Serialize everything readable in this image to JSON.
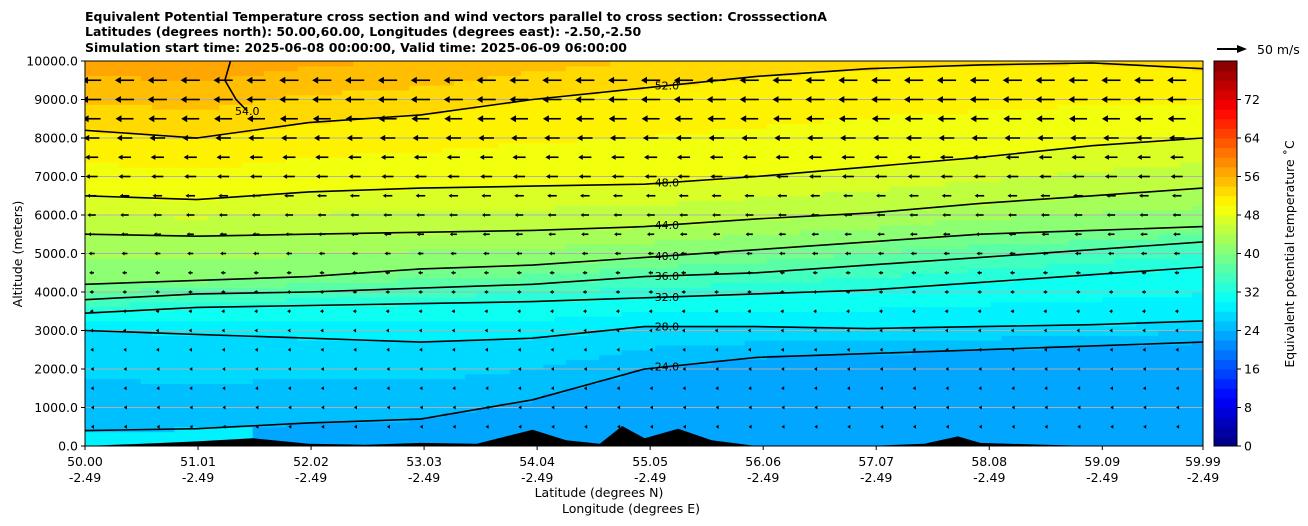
{
  "title_lines": [
    "Equivalent Potential Temperature cross section and wind vectors parallel to cross section: CrosssectionA",
    "Latitudes (degrees north): 50.00,60.00, Longitudes (degrees east): -2.50,-2.50",
    "Simulation start time: 2025-06-08 00:00:00, Valid time: 2025-06-09 06:00:00"
  ],
  "chart_data": {
    "type": "heatmap",
    "subtype": "filled contour cross-section with wind vectors",
    "xlabel": "Latitude (degrees N)",
    "xlabel2": "Longitude (degrees E)",
    "ylabel": "Altitude (meters)",
    "xlim": [
      50.0,
      59.99
    ],
    "ylim": [
      0,
      10000
    ],
    "x_ticks": [
      {
        "lat": 50.0,
        "lat_label": "50.00",
        "lon_label": "-2.49"
      },
      {
        "lat": 51.01,
        "lat_label": "51.01",
        "lon_label": "-2.49"
      },
      {
        "lat": 52.02,
        "lat_label": "52.02",
        "lon_label": "-2.49"
      },
      {
        "lat": 53.03,
        "lat_label": "53.03",
        "lon_label": "-2.49"
      },
      {
        "lat": 54.04,
        "lat_label": "54.04",
        "lon_label": "-2.49"
      },
      {
        "lat": 55.05,
        "lat_label": "55.05",
        "lon_label": "-2.49"
      },
      {
        "lat": 56.06,
        "lat_label": "56.06",
        "lon_label": "-2.49"
      },
      {
        "lat": 57.07,
        "lat_label": "57.07",
        "lon_label": "-2.49"
      },
      {
        "lat": 58.08,
        "lat_label": "58.08",
        "lon_label": "-2.49"
      },
      {
        "lat": 59.09,
        "lat_label": "59.09",
        "lon_label": "-2.49"
      },
      {
        "lat": 59.99,
        "lat_label": "59.99",
        "lon_label": "-2.49"
      }
    ],
    "y_ticks": [
      {
        "value": 0,
        "label": "0.0"
      },
      {
        "value": 1000,
        "label": "1000.0"
      },
      {
        "value": 2000,
        "label": "2000.0"
      },
      {
        "value": 3000,
        "label": "3000.0"
      },
      {
        "value": 4000,
        "label": "4000.0"
      },
      {
        "value": 5000,
        "label": "5000.0"
      },
      {
        "value": 6000,
        "label": "6000.0"
      },
      {
        "value": 7000,
        "label": "7000.0"
      },
      {
        "value": 8000,
        "label": "8000.0"
      },
      {
        "value": 9000,
        "label": "9000.0"
      },
      {
        "value": 10000,
        "label": "10000.0"
      }
    ],
    "grid": "horizontal",
    "colorbar": {
      "label": "Equivalent potential temperature ˚C",
      "min": 0,
      "max": 80,
      "step": 2,
      "ticks": [
        0,
        8,
        16,
        24,
        32,
        40,
        48,
        56,
        64,
        72
      ],
      "colormap": "jet"
    },
    "contours": [
      {
        "level": 24,
        "label": "24.0",
        "points": [
          [
            50.0,
            400
          ],
          [
            51.0,
            450
          ],
          [
            52.0,
            600
          ],
          [
            53.0,
            700
          ],
          [
            54.0,
            1200
          ],
          [
            55.0,
            2000
          ],
          [
            56.0,
            2300
          ],
          [
            57.0,
            2400
          ],
          [
            58.0,
            2500
          ],
          [
            59.0,
            2600
          ],
          [
            59.99,
            2700
          ]
        ]
      },
      {
        "level": 28,
        "label": "28.0",
        "points": [
          [
            50.0,
            3000
          ],
          [
            51.0,
            2900
          ],
          [
            52.0,
            2800
          ],
          [
            53.0,
            2700
          ],
          [
            54.0,
            2800
          ],
          [
            55.0,
            3100
          ],
          [
            56.0,
            3100
          ],
          [
            57.0,
            3050
          ],
          [
            58.0,
            3100
          ],
          [
            59.0,
            3150
          ],
          [
            59.99,
            3250
          ]
        ]
      },
      {
        "level": 32,
        "label": "32.0",
        "points": [
          [
            50.0,
            3450
          ],
          [
            51.0,
            3600
          ],
          [
            52.0,
            3650
          ],
          [
            53.0,
            3700
          ],
          [
            54.0,
            3750
          ],
          [
            55.0,
            3850
          ],
          [
            56.0,
            3950
          ],
          [
            57.0,
            4050
          ],
          [
            58.0,
            4250
          ],
          [
            59.0,
            4450
          ],
          [
            59.99,
            4650
          ]
        ]
      },
      {
        "level": 36,
        "label": "36.0",
        "points": [
          [
            50.0,
            3800
          ],
          [
            51.0,
            3950
          ],
          [
            52.0,
            4000
          ],
          [
            53.0,
            4100
          ],
          [
            54.0,
            4200
          ],
          [
            55.0,
            4400
          ],
          [
            56.0,
            4500
          ],
          [
            57.0,
            4700
          ],
          [
            58.0,
            4900
          ],
          [
            59.0,
            5100
          ],
          [
            59.99,
            5300
          ]
        ]
      },
      {
        "level": 40,
        "label": "40.0",
        "points": [
          [
            50.0,
            4200
          ],
          [
            51.0,
            4300
          ],
          [
            52.0,
            4400
          ],
          [
            53.0,
            4600
          ],
          [
            54.0,
            4700
          ],
          [
            55.0,
            4900
          ],
          [
            56.0,
            5100
          ],
          [
            57.0,
            5300
          ],
          [
            58.0,
            5500
          ],
          [
            59.0,
            5600
          ],
          [
            59.99,
            5700
          ]
        ]
      },
      {
        "level": 44,
        "label": "44.0",
        "points": [
          [
            50.0,
            5500
          ],
          [
            51.0,
            5450
          ],
          [
            52.0,
            5500
          ],
          [
            53.0,
            5550
          ],
          [
            54.0,
            5600
          ],
          [
            55.0,
            5700
          ],
          [
            56.0,
            5900
          ],
          [
            57.0,
            6050
          ],
          [
            58.0,
            6300
          ],
          [
            59.0,
            6500
          ],
          [
            59.99,
            6700
          ]
        ]
      },
      {
        "level": 48,
        "label": "48.0",
        "points": [
          [
            50.0,
            6500
          ],
          [
            51.0,
            6400
          ],
          [
            52.0,
            6600
          ],
          [
            53.0,
            6700
          ],
          [
            54.0,
            6750
          ],
          [
            55.0,
            6800
          ],
          [
            56.0,
            7000
          ],
          [
            57.0,
            7250
          ],
          [
            58.0,
            7500
          ],
          [
            59.0,
            7800
          ],
          [
            59.99,
            8000
          ]
        ]
      },
      {
        "level": 52,
        "label": "52.0",
        "points": [
          [
            50.0,
            8200
          ],
          [
            51.0,
            8000
          ],
          [
            52.0,
            8400
          ],
          [
            53.0,
            8600
          ],
          [
            54.0,
            9000
          ],
          [
            55.0,
            9300
          ],
          [
            56.0,
            9600
          ],
          [
            57.0,
            9800
          ],
          [
            58.0,
            9900
          ],
          [
            59.0,
            9950
          ],
          [
            59.99,
            9800
          ]
        ]
      },
      {
        "level": 54,
        "label": "54.0",
        "points": [
          [
            51.3,
            10000
          ],
          [
            51.25,
            9500
          ],
          [
            51.35,
            9000
          ],
          [
            51.45,
            8700
          ]
        ]
      }
    ],
    "terrain": [
      [
        50.0,
        0
      ],
      [
        50.7,
        80
      ],
      [
        51.0,
        120
      ],
      [
        51.5,
        200
      ],
      [
        52.0,
        60
      ],
      [
        52.5,
        30
      ],
      [
        53.0,
        80
      ],
      [
        53.5,
        60
      ],
      [
        54.0,
        420
      ],
      [
        54.3,
        150
      ],
      [
        54.6,
        60
      ],
      [
        54.8,
        520
      ],
      [
        55.0,
        200
      ],
      [
        55.3,
        450
      ],
      [
        55.6,
        150
      ],
      [
        56.0,
        0
      ],
      [
        57.0,
        0
      ],
      [
        57.5,
        60
      ],
      [
        57.8,
        250
      ],
      [
        58.0,
        80
      ],
      [
        58.5,
        40
      ],
      [
        59.0,
        0
      ],
      [
        59.99,
        0
      ]
    ],
    "wind_vectors": {
      "direction": "southward (toward decreasing latitude)",
      "reference_speed": 50,
      "reference_label": "50 m/s",
      "levels": [
        {
          "z": 9500,
          "speed": 32
        },
        {
          "z": 9000,
          "speed": 32
        },
        {
          "z": 8500,
          "speed": 30
        },
        {
          "z": 8000,
          "speed": 26
        },
        {
          "z": 7500,
          "speed": 22
        },
        {
          "z": 7000,
          "speed": 20
        },
        {
          "z": 6500,
          "speed": 16
        },
        {
          "z": 6000,
          "speed": 14
        },
        {
          "z": 5500,
          "speed": 12
        },
        {
          "z": 5000,
          "speed": 10
        },
        {
          "z": 4500,
          "speed": 8
        },
        {
          "z": 4000,
          "speed": 7
        },
        {
          "z": 3500,
          "speed": 6
        },
        {
          "z": 3000,
          "speed": 5
        },
        {
          "z": 2500,
          "speed": 4
        },
        {
          "z": 2000,
          "speed": 3
        },
        {
          "z": 1500,
          "speed": 3
        },
        {
          "z": 1000,
          "speed": 2
        },
        {
          "z": 500,
          "speed": 2
        }
      ]
    }
  },
  "colors": {
    "terrain": "#000000",
    "grid": "#b0b0b0",
    "contour": "#000000"
  }
}
